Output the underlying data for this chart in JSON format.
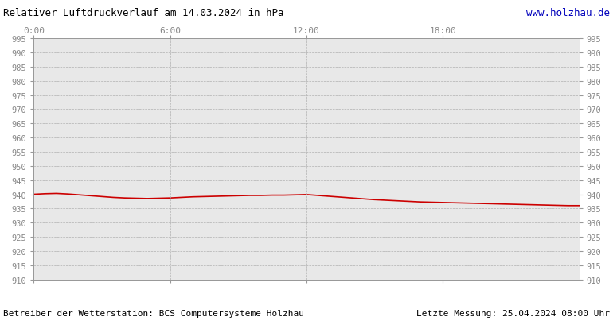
{
  "title": "Relativer Luftdruckverlauf am 14.03.2024 in hPa",
  "url": "www.holzhau.de",
  "footer_left": "Betreiber der Wetterstation: BCS Computersysteme Holzhau",
  "footer_right": "Letzte Messung: 25.04.2024 08:00 Uhr",
  "x_ticks_labels": [
    "0:00",
    "6:00",
    "12:00",
    "18:00"
  ],
  "x_ticks_pos": [
    0,
    360,
    720,
    1080
  ],
  "x_max": 1440,
  "y_min": 910,
  "y_max": 995,
  "y_tick_step": 5,
  "line_color": "#cc0000",
  "line_width": 1.2,
  "grid_color": "#b0b0b0",
  "background_color": "#ffffff",
  "plot_bg_color": "#e8e8e8",
  "tick_label_color": "#888888",
  "pressure_data": [
    [
      0,
      940.0
    ],
    [
      30,
      940.2
    ],
    [
      60,
      940.3
    ],
    [
      90,
      940.1
    ],
    [
      120,
      939.8
    ],
    [
      150,
      939.5
    ],
    [
      180,
      939.2
    ],
    [
      210,
      938.9
    ],
    [
      240,
      938.7
    ],
    [
      270,
      938.6
    ],
    [
      300,
      938.5
    ],
    [
      330,
      938.6
    ],
    [
      360,
      938.7
    ],
    [
      390,
      938.9
    ],
    [
      420,
      939.1
    ],
    [
      450,
      939.2
    ],
    [
      480,
      939.3
    ],
    [
      510,
      939.4
    ],
    [
      540,
      939.5
    ],
    [
      570,
      939.6
    ],
    [
      600,
      939.6
    ],
    [
      630,
      939.7
    ],
    [
      660,
      939.7
    ],
    [
      690,
      939.8
    ],
    [
      720,
      939.9
    ],
    [
      750,
      939.6
    ],
    [
      780,
      939.3
    ],
    [
      810,
      939.0
    ],
    [
      840,
      938.7
    ],
    [
      870,
      938.4
    ],
    [
      900,
      938.1
    ],
    [
      930,
      937.9
    ],
    [
      960,
      937.7
    ],
    [
      990,
      937.5
    ],
    [
      1020,
      937.3
    ],
    [
      1050,
      937.2
    ],
    [
      1080,
      937.1
    ],
    [
      1110,
      937.0
    ],
    [
      1140,
      936.9
    ],
    [
      1170,
      936.8
    ],
    [
      1200,
      936.7
    ],
    [
      1230,
      936.6
    ],
    [
      1260,
      936.5
    ],
    [
      1290,
      936.4
    ],
    [
      1320,
      936.3
    ],
    [
      1350,
      936.2
    ],
    [
      1380,
      936.1
    ],
    [
      1410,
      936.0
    ],
    [
      1440,
      936.0
    ]
  ]
}
